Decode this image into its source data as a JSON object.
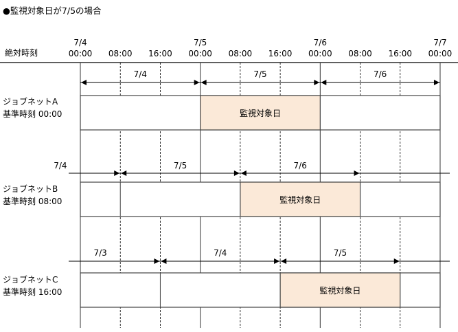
{
  "title": "●監視対象日が7/5の場合",
  "axis": {
    "label": "絶対時刻",
    "ticks": [
      {
        "date": "7/4",
        "time": "00:00"
      },
      {
        "date": "",
        "time": "08:00"
      },
      {
        "date": "",
        "time": "16:00"
      },
      {
        "date": "7/5",
        "time": "00:00"
      },
      {
        "date": "",
        "time": "08:00"
      },
      {
        "date": "",
        "time": "16:00"
      },
      {
        "date": "7/6",
        "time": "00:00"
      },
      {
        "date": "",
        "time": "08:00"
      },
      {
        "date": "",
        "time": "16:00"
      },
      {
        "date": "7/7",
        "time": "00:00"
      }
    ]
  },
  "rows": [
    {
      "name": "ジョブネットA",
      "base": "基準時刻 00:00",
      "offset_hours": 0,
      "days": [
        "7/4",
        "7/5",
        "7/6"
      ],
      "highlight_label": "監視対象日"
    },
    {
      "name": "ジョブネットB",
      "base": "基準時刻 08:00",
      "offset_hours": 8,
      "days": [
        "7/4",
        "7/5",
        "7/6"
      ],
      "highlight_label": "監視対象日"
    },
    {
      "name": "ジョブネットC",
      "base": "基準時刻 16:00",
      "offset_hours": 16,
      "days": [
        "7/3",
        "7/4",
        "7/5"
      ],
      "highlight_label": "監視対象日"
    }
  ],
  "colors": {
    "highlight": "#fbe9d8",
    "line": "#000000",
    "box_border": "#555555"
  }
}
